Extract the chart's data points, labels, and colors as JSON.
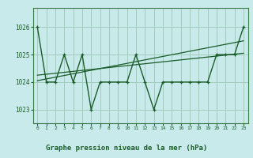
{
  "title": "Graphe pression niveau de la mer (hPa)",
  "background_color": "#c8eaea",
  "grid_color": "#a0ccbb",
  "line_color": "#1a5c2a",
  "spine_color": "#3a7a4a",
  "xlim": [
    -0.5,
    23.5
  ],
  "ylim": [
    1022.5,
    1026.7
  ],
  "yticks": [
    1023,
    1024,
    1025,
    1026
  ],
  "xticks": [
    0,
    1,
    2,
    3,
    4,
    5,
    6,
    7,
    8,
    9,
    10,
    11,
    12,
    13,
    14,
    15,
    16,
    17,
    18,
    19,
    20,
    21,
    22,
    23
  ],
  "hours": [
    0,
    1,
    2,
    3,
    4,
    5,
    6,
    7,
    8,
    9,
    10,
    11,
    12,
    13,
    14,
    15,
    16,
    17,
    18,
    19,
    20,
    21,
    22,
    23
  ],
  "pressure": [
    1026,
    1024,
    1024,
    1025,
    1024,
    1025,
    1023,
    1024,
    1024,
    1024,
    1024,
    1025,
    1024,
    1023,
    1024,
    1024,
    1024,
    1024,
    1024,
    1024,
    1025,
    1025,
    1025,
    1026
  ],
  "trend1_x": [
    0,
    23
  ],
  "trend1_y": [
    1024.05,
    1025.5
  ],
  "trend2_x": [
    0,
    23
  ],
  "trend2_y": [
    1024.25,
    1025.05
  ]
}
